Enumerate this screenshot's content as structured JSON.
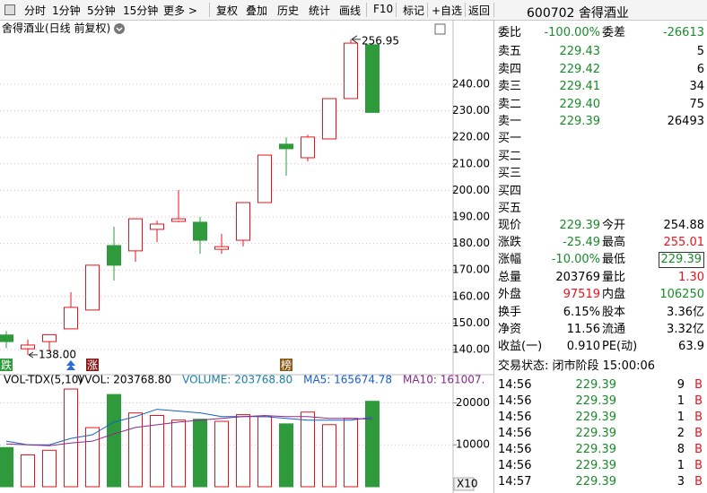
{
  "toolbar": [
    "分时",
    "1分钟",
    "5分钟",
    "15分钟",
    "更多 >",
    "复权",
    "叠加",
    "历史",
    "统计",
    "画线",
    "F10",
    "标记",
    "+自选",
    "返回"
  ],
  "chart": {
    "type": "candlestick",
    "title": "舍得酒业(日线 前复权)",
    "ylim": [
      131.55,
      258.24
    ],
    "yticks": [
      {
        "value": 140,
        "label": "140.00"
      },
      {
        "value": 150,
        "label": "150.00"
      },
      {
        "value": 160,
        "label": "160.00"
      },
      {
        "value": 170,
        "label": "170.00"
      },
      {
        "value": 180,
        "label": "180.00"
      },
      {
        "value": 190,
        "label": "190.00"
      },
      {
        "value": 200,
        "label": "200.00"
      },
      {
        "value": 210,
        "label": "210.00"
      },
      {
        "value": 220,
        "label": "220.00"
      },
      {
        "value": 230,
        "label": "230.00"
      },
      {
        "value": 240,
        "label": "240.00"
      }
    ],
    "up_color": "#e8141e",
    "down_color": "#2e9a3c",
    "candles": [
      {
        "o": 145.5,
        "h": 147,
        "l": 140.5,
        "c": 143
      },
      {
        "o": 140.3,
        "h": 143.8,
        "l": 138,
        "c": 141.7
      },
      {
        "o": 143,
        "h": 145.6,
        "l": 139.3,
        "c": 145.6
      },
      {
        "o": 147.8,
        "h": 161.6,
        "l": 147.8,
        "c": 155.9
      },
      {
        "o": 154.9,
        "h": 171.8,
        "l": 154.9,
        "c": 171.8
      },
      {
        "o": 179.2,
        "h": 186.3,
        "l": 166,
        "c": 171.8
      },
      {
        "o": 177.2,
        "h": 189.3,
        "l": 173.1,
        "c": 189.3
      },
      {
        "o": 185.3,
        "h": 188.6,
        "l": 180.5,
        "c": 187.3
      },
      {
        "o": 188.3,
        "h": 200.1,
        "l": 188,
        "c": 189.3
      },
      {
        "o": 188,
        "h": 190,
        "l": 176.1,
        "c": 181.2
      },
      {
        "o": 177.8,
        "h": 183.6,
        "l": 176.1,
        "c": 178.8
      },
      {
        "o": 181.2,
        "h": 195.4,
        "l": 178.9,
        "c": 195.4
      },
      {
        "o": 195.4,
        "h": 213.3,
        "l": 195.4,
        "c": 213.3
      },
      {
        "o": 217.4,
        "h": 220,
        "l": 205.5,
        "c": 215.7
      },
      {
        "o": 212.3,
        "h": 221,
        "l": 211,
        "c": 220.1
      },
      {
        "o": 219.4,
        "h": 234.6,
        "l": 219.4,
        "c": 234.6
      },
      {
        "o": 234.6,
        "h": 256.95,
        "l": 234.6,
        "c": 255.5
      },
      {
        "o": 254.88,
        "h": 255.01,
        "l": 229.39,
        "c": 229.39
      }
    ],
    "low_label": "138.00",
    "markers": [
      "跌",
      "涨",
      "榜"
    ]
  },
  "volume": {
    "type": "bar",
    "title": "VOL-TDX(5,10)",
    "legend": [
      {
        "text": "VVOL: 203768.80",
        "color": "#000000"
      },
      {
        "text": "VOLUME: 203768.80",
        "color": "#1a7fa8"
      },
      {
        "text": "MA5: 165674.78",
        "color": "#1a5fc8"
      },
      {
        "text": "MA10: 161007.",
        "color": "#8a2a8a"
      }
    ],
    "unit_label": "X10",
    "ylim": [
      0,
      26300
    ],
    "yticks": [
      10000,
      20000
    ],
    "values": [
      9350,
      7600,
      8700,
      23300,
      14100,
      22000,
      17600,
      17000,
      15900,
      16100,
      15600,
      17200,
      16700,
      15000,
      17800,
      14800,
      16300,
      20377
    ],
    "ma5": [
      10870,
      10000,
      10000,
      11520,
      12390,
      15430,
      16740,
      18480,
      18040,
      17610,
      16740,
      16740,
      16740,
      16300,
      15870,
      15870,
      15870,
      16567
    ],
    "ma10": [
      10220,
      10000,
      9780,
      10430,
      10870,
      12610,
      14130,
      14780,
      15430,
      15870,
      16300,
      16740,
      16960,
      16740,
      16740,
      16300,
      16300,
      16101
    ]
  },
  "quote": {
    "code_name": "600702 舍得酒业",
    "weibi": [
      "委比",
      "-100.00%",
      "委差",
      "-26613"
    ],
    "asks": [
      [
        "卖五",
        "229.43",
        "5"
      ],
      [
        "卖四",
        "229.42",
        "6"
      ],
      [
        "卖三",
        "229.41",
        "34"
      ],
      [
        "卖二",
        "229.40",
        "75"
      ],
      [
        "卖一",
        "229.39",
        "26493"
      ]
    ],
    "bids": [
      "买一",
      "买二",
      "买三",
      "买四",
      "买五"
    ],
    "stats": [
      [
        "现价",
        "229.39",
        "今开",
        "254.88"
      ],
      [
        "涨跌",
        "-25.49",
        "最高",
        "255.01"
      ],
      [
        "涨幅",
        "-10.00%",
        "最低",
        "229.39"
      ],
      [
        "总量",
        "203769",
        "量比",
        "1.30"
      ],
      [
        "外盘",
        "97519",
        "内盘",
        "106250"
      ]
    ],
    "fund": [
      [
        "换手",
        "6.15%",
        "股本",
        "3.36亿"
      ],
      [
        "净资",
        "11.56",
        "流通",
        "3.32亿"
      ],
      [
        "收益(一)",
        "0.910",
        "PE(动)",
        "63.9"
      ]
    ],
    "status": "交易状态: 闭市阶段 15:00:06",
    "trades": [
      [
        "14:56",
        "229.39",
        "9",
        "B"
      ],
      [
        "14:56",
        "229.39",
        "1",
        "B"
      ],
      [
        "14:56",
        "229.39",
        "1",
        "B"
      ],
      [
        "14:56",
        "229.39",
        "2",
        "B"
      ],
      [
        "14:56",
        "229.39",
        "8",
        "B"
      ],
      [
        "14:56",
        "229.39",
        "1",
        "B"
      ],
      [
        "14:57",
        "229.39",
        "3",
        "B"
      ]
    ]
  }
}
